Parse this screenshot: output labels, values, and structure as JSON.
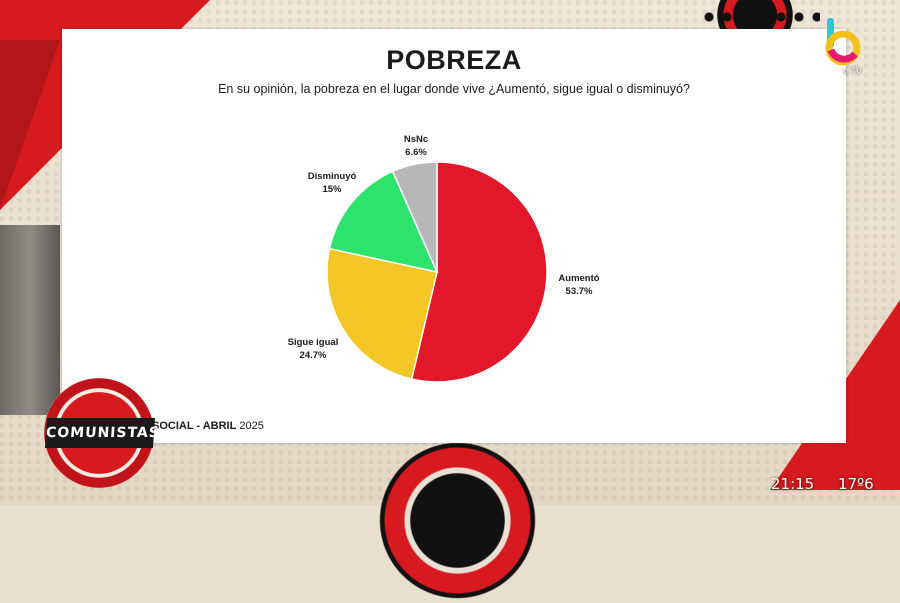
{
  "card": {
    "title": "POBREZA",
    "subtitle": "En su opinión, la pobreza en el lugar donde vive ¿Aumentó, sigue igual o disminuyó?",
    "source_bold": "SOCIAL - ABRIL",
    "source_year": "2025"
  },
  "chart_data": {
    "type": "pie",
    "title": "POBREZA",
    "slices": [
      {
        "label": "Aumentó",
        "value": 53.7,
        "display": "53.7%",
        "color": "#e3172a"
      },
      {
        "label": "Sigue igual",
        "value": 24.7,
        "display": "24.7%",
        "color": "#f3c625"
      },
      {
        "label": "Disminuyó",
        "value": 15,
        "display": "15%",
        "color": "#2ee36b"
      },
      {
        "label": "NsNc",
        "value": 6.6,
        "display": "6.6%",
        "color": "#b7b7b7"
      }
    ],
    "start": "12 o'clock",
    "direction": "clockwise"
  },
  "overlay": {
    "program_logo": "COMUNISTAS",
    "channel_logo_letter": "b",
    "channel_suffix": "o TV",
    "time": "21:15",
    "temperature": "17º6"
  },
  "colors": {
    "accent_red": "#d71a1f",
    "card_bg": "#ffffff"
  }
}
